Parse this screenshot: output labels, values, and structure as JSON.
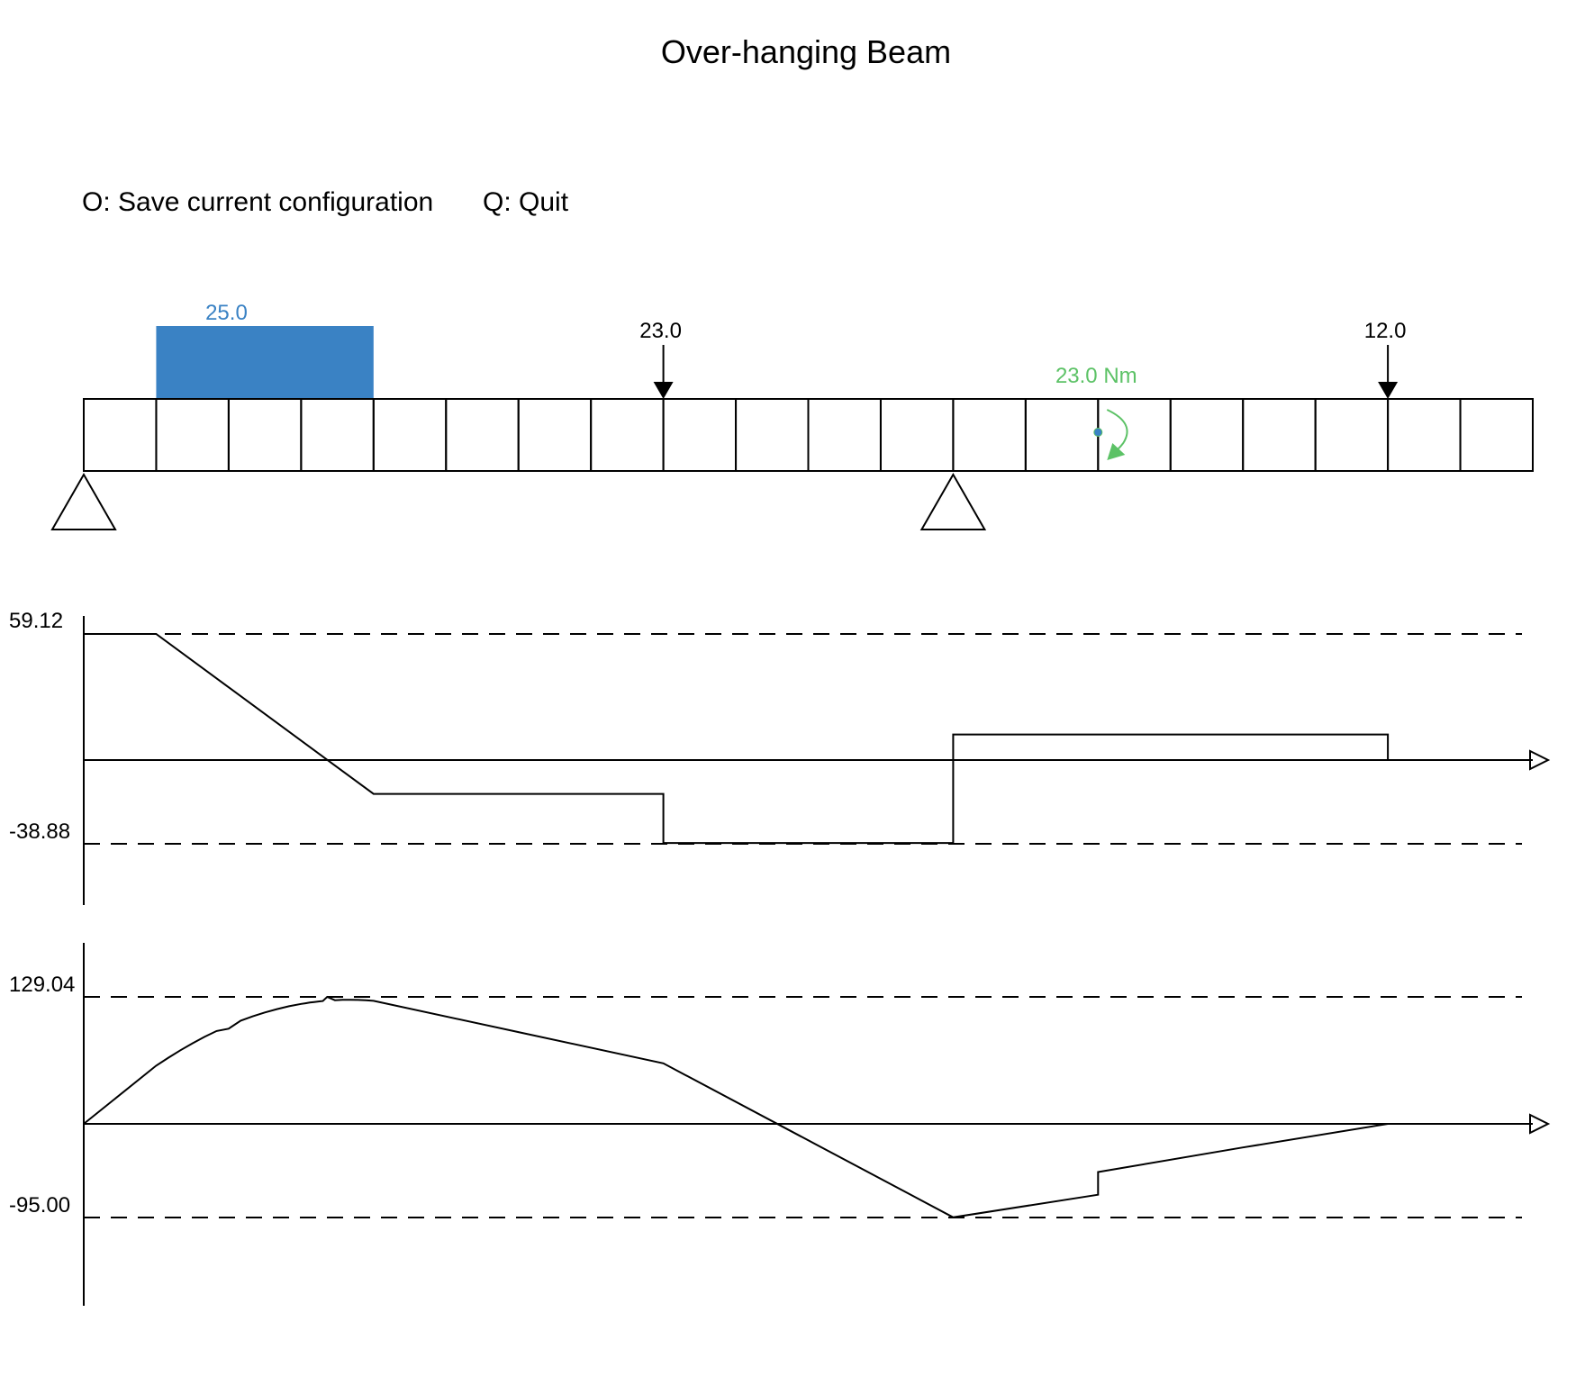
{
  "window": {
    "title": "Over-hanging Beam"
  },
  "menu": [
    {
      "key": "O",
      "label": "O: Save current configuration"
    },
    {
      "key": "Q",
      "label": "Q: Quit"
    }
  ],
  "beam": {
    "segments": 20,
    "supports": [
      0,
      12
    ],
    "distributed_load": {
      "start": 1,
      "end": 4,
      "magnitude": 25.0,
      "label": "25.0",
      "color": "#3a82c4"
    },
    "point_loads": [
      {
        "position": 8,
        "magnitude": 23.0,
        "label": "23.0"
      },
      {
        "position": 18,
        "magnitude": 12.0,
        "label": "12.0"
      }
    ],
    "moment_load": {
      "position": 14,
      "magnitude": 23.0,
      "label": "23.0 Nm",
      "color": "#5cc266",
      "marker_color": "#3a82c4"
    }
  },
  "shear_diagram": {
    "max_label": "59.12",
    "min_label": "-38.88",
    "max": 59.12,
    "min": -38.88
  },
  "moment_diagram": {
    "max_label": "129.04",
    "min_label": "-95.00",
    "max": 129.04,
    "min": -95.0
  },
  "chart_data": [
    {
      "type": "line",
      "x": [
        0,
        1,
        4,
        8,
        8,
        12,
        12,
        18,
        18,
        20
      ],
      "values": [
        59.12,
        59.12,
        -15.88,
        -15.88,
        -38.88,
        -38.88,
        12.0,
        12.0,
        0,
        0
      ],
      "ylim": [
        -38.88,
        59.12
      ]
    },
    {
      "type": "line",
      "x": [
        0,
        1,
        2,
        3,
        3.36,
        4,
        6,
        8,
        10,
        12,
        14,
        14,
        16,
        18,
        20
      ],
      "values": [
        0,
        59.12,
        96.74,
        121.86,
        129.04,
        125.04,
        93.28,
        61.52,
        -16.73,
        -95.0,
        -72.0,
        -49.0,
        -24.0,
        0,
        0
      ],
      "ylim": [
        -95.0,
        129.04
      ]
    }
  ]
}
